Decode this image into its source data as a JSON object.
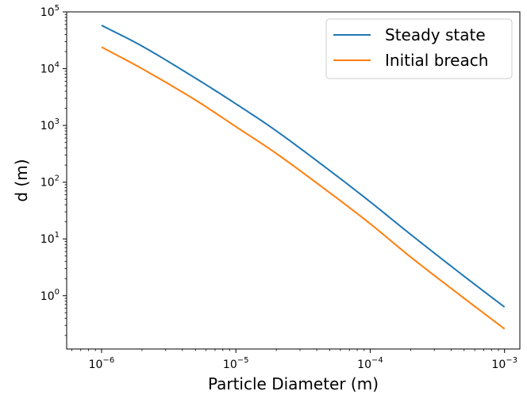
{
  "chart_data": {
    "type": "line",
    "xlabel": "Particle Diameter (m)",
    "ylabel": "d (m)",
    "xscale": "log",
    "yscale": "log",
    "xlim": [
      5.5e-07,
      0.0013
    ],
    "ylim": [
      0.115,
      100000
    ],
    "xticks": [
      {
        "base": "10",
        "exp": "−6",
        "value": 1e-06
      },
      {
        "base": "10",
        "exp": "−5",
        "value": 1e-05
      },
      {
        "base": "10",
        "exp": "−4",
        "value": 0.0001
      },
      {
        "base": "10",
        "exp": "−3",
        "value": 0.001
      }
    ],
    "yticks": [
      {
        "base": "10",
        "exp": "0",
        "value": 1
      },
      {
        "base": "10",
        "exp": "1",
        "value": 10
      },
      {
        "base": "10",
        "exp": "2",
        "value": 100
      },
      {
        "base": "10",
        "exp": "3",
        "value": 1000
      },
      {
        "base": "10",
        "exp": "4",
        "value": 10000
      },
      {
        "base": "10",
        "exp": "5",
        "value": 100000
      }
    ],
    "grid": false,
    "legend_position": "top-right",
    "series": [
      {
        "name": "Steady state",
        "color": "#1f77b4",
        "x": [
          1e-06,
          2e-06,
          5e-06,
          1e-05,
          2e-05,
          5e-05,
          0.0001,
          0.0002,
          0.0005,
          0.001
        ],
        "y": [
          58000,
          25000,
          6800,
          2400,
          800,
          160,
          45,
          12,
          2.2,
          0.63
        ]
      },
      {
        "name": "Initial breach",
        "color": "#ff7f0e",
        "x": [
          1e-06,
          2e-06,
          5e-06,
          1e-05,
          2e-05,
          5e-05,
          0.0001,
          0.0002,
          0.0005,
          0.001
        ],
        "y": [
          24000,
          10000,
          2800,
          950,
          320,
          65,
          18.5,
          4.8,
          0.9,
          0.26
        ]
      }
    ]
  }
}
